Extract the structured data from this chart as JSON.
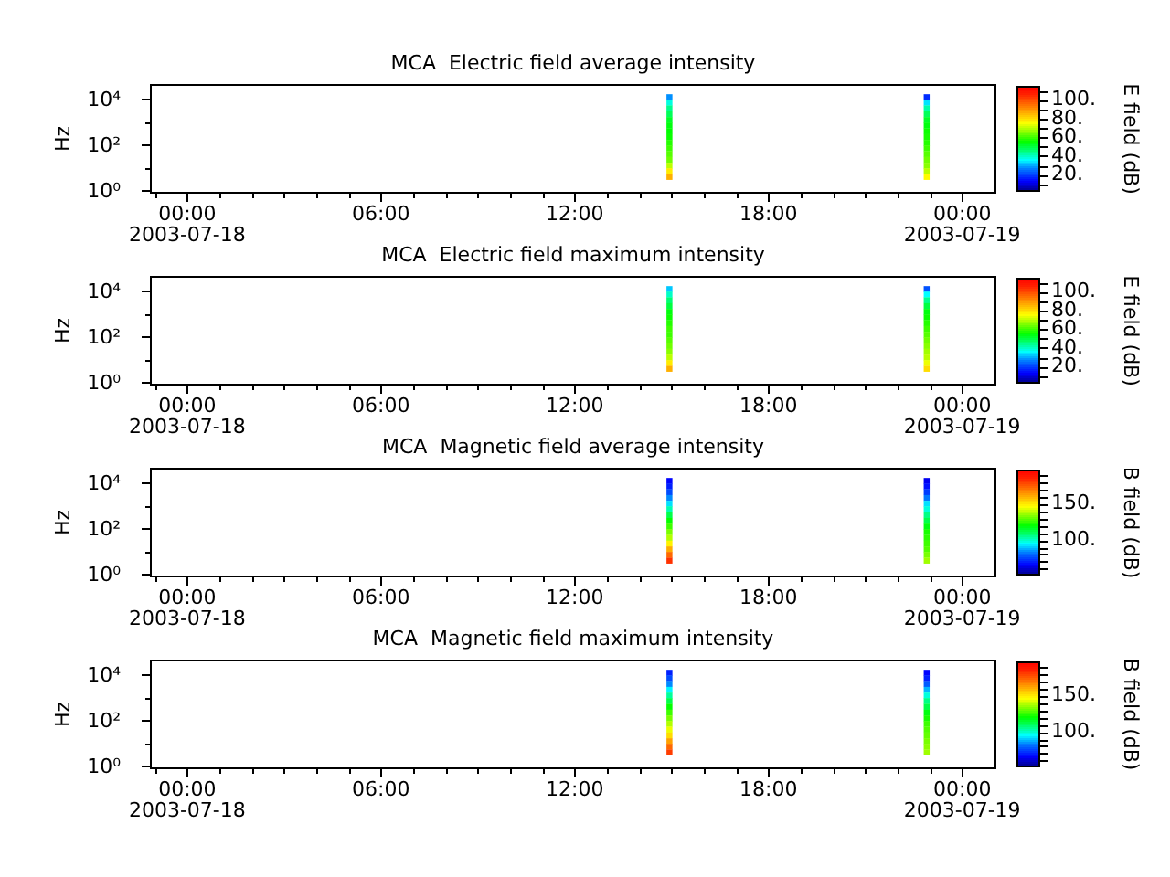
{
  "chart_data": [
    {
      "type": "scatter",
      "title": "MCA  Electric field average intensity",
      "ylabel": "Hz",
      "clabel": "E field (dB)",
      "log": "y",
      "marker": "square",
      "x": [
        "2003-07-18T14:56",
        "2003-07-18T14:56",
        "2003-07-18T14:56",
        "2003-07-18T14:56",
        "2003-07-18T14:56",
        "2003-07-18T14:56",
        "2003-07-18T14:56",
        "2003-07-18T14:56",
        "2003-07-18T14:56",
        "2003-07-18T14:56",
        "2003-07-18T14:56",
        "2003-07-18T14:56",
        "2003-07-18T14:56",
        "2003-07-18T14:56",
        "2003-07-18T14:56",
        "2003-07-18T22:54",
        "2003-07-18T22:54",
        "2003-07-18T22:54",
        "2003-07-18T22:54",
        "2003-07-18T22:54",
        "2003-07-18T22:54",
        "2003-07-18T22:54",
        "2003-07-18T22:54",
        "2003-07-18T22:54",
        "2003-07-18T22:54",
        "2003-07-18T22:54",
        "2003-07-18T22:54",
        "2003-07-18T22:54",
        "2003-07-18T22:54",
        "2003-07-18T22:54"
      ],
      "values": [
        14000,
        8000,
        4500,
        2500,
        1400,
        800,
        450,
        250,
        140,
        80,
        45,
        25,
        14,
        8,
        4.5,
        14000,
        8000,
        4500,
        2500,
        1400,
        800,
        450,
        250,
        140,
        80,
        45,
        25,
        14,
        8,
        4.5
      ],
      "cvalues": [
        28,
        38,
        44,
        48,
        52,
        54,
        55,
        56,
        58,
        60,
        62,
        64,
        70,
        78,
        86,
        18,
        34,
        42,
        48,
        52,
        54,
        56,
        57,
        58,
        60,
        62,
        64,
        66,
        70,
        76
      ],
      "xlim": [
        "2003-07-17T22:54",
        "2003-07-19T01:00"
      ],
      "ylim": [
        1,
        44000
      ],
      "xticks": [
        {
          "value": "2003-07-17T23:00",
          "label": null
        },
        {
          "value": "2003-07-18T00:00",
          "label": "00:00\n2003-07-18"
        },
        {
          "value": "2003-07-18T01:00",
          "label": null
        },
        {
          "value": "2003-07-18T02:00",
          "label": null
        },
        {
          "value": "2003-07-18T03:00",
          "label": null
        },
        {
          "value": "2003-07-18T04:00",
          "label": null
        },
        {
          "value": "2003-07-18T05:00",
          "label": null
        },
        {
          "value": "2003-07-18T06:00",
          "label": "06:00"
        },
        {
          "value": "2003-07-18T07:00",
          "label": null
        },
        {
          "value": "2003-07-18T08:00",
          "label": null
        },
        {
          "value": "2003-07-18T09:00",
          "label": null
        },
        {
          "value": "2003-07-18T10:00",
          "label": null
        },
        {
          "value": "2003-07-18T11:00",
          "label": null
        },
        {
          "value": "2003-07-18T12:00",
          "label": "12:00"
        },
        {
          "value": "2003-07-18T13:00",
          "label": null
        },
        {
          "value": "2003-07-18T14:00",
          "label": null
        },
        {
          "value": "2003-07-18T15:00",
          "label": null
        },
        {
          "value": "2003-07-18T16:00",
          "label": null
        },
        {
          "value": "2003-07-18T17:00",
          "label": null
        },
        {
          "value": "2003-07-18T18:00",
          "label": "18:00"
        },
        {
          "value": "2003-07-18T19:00",
          "label": null
        },
        {
          "value": "2003-07-18T20:00",
          "label": null
        },
        {
          "value": "2003-07-18T21:00",
          "label": null
        },
        {
          "value": "2003-07-18T22:00",
          "label": null
        },
        {
          "value": "2003-07-18T23:00",
          "label": null
        },
        {
          "value": "2003-07-19T00:00",
          "label": "00:00\n2003-07-19"
        }
      ],
      "yticks": [
        {
          "value": 1,
          "label": "10⁰"
        },
        {
          "value": 10,
          "label": null
        },
        {
          "value": 100,
          "label": "10²"
        },
        {
          "value": 1000,
          "label": null
        },
        {
          "value": 10000,
          "label": "10⁴"
        }
      ],
      "clim": [
        2,
        115
      ],
      "cticks": [
        {
          "value": 10,
          "label": null
        },
        {
          "value": 20,
          "label": "20."
        },
        {
          "value": 30,
          "label": null
        },
        {
          "value": 40,
          "label": "40."
        },
        {
          "value": 50,
          "label": null
        },
        {
          "value": 60,
          "label": "60."
        },
        {
          "value": 70,
          "label": null
        },
        {
          "value": 80,
          "label": "80."
        },
        {
          "value": 90,
          "label": null
        },
        {
          "value": 100,
          "label": "100."
        },
        {
          "value": 110,
          "label": null
        }
      ]
    },
    {
      "type": "scatter",
      "title": "MCA  Electric field maximum intensity",
      "ylabel": "Hz",
      "clabel": "E field (dB)",
      "log": "y",
      "marker": "square",
      "x": [
        "2003-07-18T14:56",
        "2003-07-18T14:56",
        "2003-07-18T14:56",
        "2003-07-18T14:56",
        "2003-07-18T14:56",
        "2003-07-18T14:56",
        "2003-07-18T14:56",
        "2003-07-18T14:56",
        "2003-07-18T14:56",
        "2003-07-18T14:56",
        "2003-07-18T14:56",
        "2003-07-18T14:56",
        "2003-07-18T14:56",
        "2003-07-18T14:56",
        "2003-07-18T14:56",
        "2003-07-18T22:54",
        "2003-07-18T22:54",
        "2003-07-18T22:54",
        "2003-07-18T22:54",
        "2003-07-18T22:54",
        "2003-07-18T22:54",
        "2003-07-18T22:54",
        "2003-07-18T22:54",
        "2003-07-18T22:54",
        "2003-07-18T22:54",
        "2003-07-18T22:54",
        "2003-07-18T22:54",
        "2003-07-18T22:54",
        "2003-07-18T22:54",
        "2003-07-18T22:54"
      ],
      "values": [
        14000,
        8000,
        4500,
        2500,
        1400,
        800,
        450,
        250,
        140,
        80,
        45,
        25,
        14,
        8,
        4.5,
        14000,
        8000,
        4500,
        2500,
        1400,
        800,
        450,
        250,
        140,
        80,
        45,
        25,
        14,
        8,
        4.5
      ],
      "cvalues": [
        32,
        40,
        46,
        50,
        54,
        56,
        58,
        60,
        60,
        62,
        64,
        66,
        70,
        78,
        86,
        22,
        36,
        44,
        50,
        54,
        56,
        58,
        60,
        62,
        64,
        66,
        68,
        70,
        74,
        80
      ],
      "xlim": [
        "2003-07-17T22:54",
        "2003-07-19T01:00"
      ],
      "ylim": [
        1,
        44000
      ],
      "xticks": [
        {
          "value": "2003-07-17T23:00",
          "label": null
        },
        {
          "value": "2003-07-18T00:00",
          "label": "00:00\n2003-07-18"
        },
        {
          "value": "2003-07-18T01:00",
          "label": null
        },
        {
          "value": "2003-07-18T02:00",
          "label": null
        },
        {
          "value": "2003-07-18T03:00",
          "label": null
        },
        {
          "value": "2003-07-18T04:00",
          "label": null
        },
        {
          "value": "2003-07-18T05:00",
          "label": null
        },
        {
          "value": "2003-07-18T06:00",
          "label": "06:00"
        },
        {
          "value": "2003-07-18T07:00",
          "label": null
        },
        {
          "value": "2003-07-18T08:00",
          "label": null
        },
        {
          "value": "2003-07-18T09:00",
          "label": null
        },
        {
          "value": "2003-07-18T10:00",
          "label": null
        },
        {
          "value": "2003-07-18T11:00",
          "label": null
        },
        {
          "value": "2003-07-18T12:00",
          "label": "12:00"
        },
        {
          "value": "2003-07-18T13:00",
          "label": null
        },
        {
          "value": "2003-07-18T14:00",
          "label": null
        },
        {
          "value": "2003-07-18T15:00",
          "label": null
        },
        {
          "value": "2003-07-18T16:00",
          "label": null
        },
        {
          "value": "2003-07-18T17:00",
          "label": null
        },
        {
          "value": "2003-07-18T18:00",
          "label": "18:00"
        },
        {
          "value": "2003-07-18T19:00",
          "label": null
        },
        {
          "value": "2003-07-18T20:00",
          "label": null
        },
        {
          "value": "2003-07-18T21:00",
          "label": null
        },
        {
          "value": "2003-07-18T22:00",
          "label": null
        },
        {
          "value": "2003-07-18T23:00",
          "label": null
        },
        {
          "value": "2003-07-19T00:00",
          "label": "00:00\n2003-07-19"
        }
      ],
      "yticks": [
        {
          "value": 1,
          "label": "10⁰"
        },
        {
          "value": 10,
          "label": null
        },
        {
          "value": 100,
          "label": "10²"
        },
        {
          "value": 1000,
          "label": null
        },
        {
          "value": 10000,
          "label": "10⁴"
        }
      ],
      "clim": [
        2,
        115
      ],
      "cticks": [
        {
          "value": 10,
          "label": null
        },
        {
          "value": 20,
          "label": "20."
        },
        {
          "value": 30,
          "label": null
        },
        {
          "value": 40,
          "label": "40."
        },
        {
          "value": 50,
          "label": null
        },
        {
          "value": 60,
          "label": "60."
        },
        {
          "value": 70,
          "label": null
        },
        {
          "value": 80,
          "label": "80."
        },
        {
          "value": 90,
          "label": null
        },
        {
          "value": 100,
          "label": "100."
        },
        {
          "value": 110,
          "label": null
        }
      ]
    },
    {
      "type": "scatter",
      "title": "MCA  Magnetic field average intensity",
      "ylabel": "Hz",
      "clabel": "B field (dB)",
      "log": "y",
      "marker": "square",
      "x": [
        "2003-07-18T14:56",
        "2003-07-18T14:56",
        "2003-07-18T14:56",
        "2003-07-18T14:56",
        "2003-07-18T14:56",
        "2003-07-18T14:56",
        "2003-07-18T14:56",
        "2003-07-18T14:56",
        "2003-07-18T14:56",
        "2003-07-18T14:56",
        "2003-07-18T14:56",
        "2003-07-18T14:56",
        "2003-07-18T14:56",
        "2003-07-18T14:56",
        "2003-07-18T14:56",
        "2003-07-18T22:54",
        "2003-07-18T22:54",
        "2003-07-18T22:54",
        "2003-07-18T22:54",
        "2003-07-18T22:54",
        "2003-07-18T22:54",
        "2003-07-18T22:54",
        "2003-07-18T22:54",
        "2003-07-18T22:54",
        "2003-07-18T22:54",
        "2003-07-18T22:54",
        "2003-07-18T22:54",
        "2003-07-18T22:54",
        "2003-07-18T22:54",
        "2003-07-18T22:54"
      ],
      "values": [
        14000,
        8000,
        4500,
        2500,
        1400,
        800,
        450,
        250,
        140,
        80,
        45,
        25,
        14,
        8,
        4.5,
        14000,
        8000,
        4500,
        2500,
        1400,
        800,
        450,
        250,
        140,
        80,
        45,
        25,
        14,
        8,
        4.5
      ],
      "cvalues": [
        66,
        70,
        76,
        84,
        92,
        102,
        112,
        120,
        126,
        132,
        138,
        148,
        160,
        172,
        182,
        64,
        68,
        74,
        82,
        92,
        98,
        106,
        112,
        118,
        122,
        124,
        126,
        128,
        132,
        136
      ],
      "xlim": [
        "2003-07-17T22:54",
        "2003-07-19T01:00"
      ],
      "ylim": [
        1,
        44000
      ],
      "xticks": [
        {
          "value": "2003-07-17T23:00",
          "label": null
        },
        {
          "value": "2003-07-18T00:00",
          "label": "00:00\n2003-07-18"
        },
        {
          "value": "2003-07-18T01:00",
          "label": null
        },
        {
          "value": "2003-07-18T02:00",
          "label": null
        },
        {
          "value": "2003-07-18T03:00",
          "label": null
        },
        {
          "value": "2003-07-18T04:00",
          "label": null
        },
        {
          "value": "2003-07-18T05:00",
          "label": null
        },
        {
          "value": "2003-07-18T06:00",
          "label": "06:00"
        },
        {
          "value": "2003-07-18T07:00",
          "label": null
        },
        {
          "value": "2003-07-18T08:00",
          "label": null
        },
        {
          "value": "2003-07-18T09:00",
          "label": null
        },
        {
          "value": "2003-07-18T10:00",
          "label": null
        },
        {
          "value": "2003-07-18T11:00",
          "label": null
        },
        {
          "value": "2003-07-18T12:00",
          "label": "12:00"
        },
        {
          "value": "2003-07-18T13:00",
          "label": null
        },
        {
          "value": "2003-07-18T14:00",
          "label": null
        },
        {
          "value": "2003-07-18T15:00",
          "label": null
        },
        {
          "value": "2003-07-18T16:00",
          "label": null
        },
        {
          "value": "2003-07-18T17:00",
          "label": null
        },
        {
          "value": "2003-07-18T18:00",
          "label": "18:00"
        },
        {
          "value": "2003-07-18T19:00",
          "label": null
        },
        {
          "value": "2003-07-18T20:00",
          "label": null
        },
        {
          "value": "2003-07-18T21:00",
          "label": null
        },
        {
          "value": "2003-07-18T22:00",
          "label": null
        },
        {
          "value": "2003-07-18T23:00",
          "label": null
        },
        {
          "value": "2003-07-19T00:00",
          "label": "00:00\n2003-07-19"
        }
      ],
      "yticks": [
        {
          "value": 1,
          "label": "10⁰"
        },
        {
          "value": 10,
          "label": null
        },
        {
          "value": 100,
          "label": "10²"
        },
        {
          "value": 1000,
          "label": null
        },
        {
          "value": 10000,
          "label": "10⁴"
        }
      ],
      "clim": [
        51,
        197
      ],
      "cticks": [
        {
          "value": 60,
          "label": null
        },
        {
          "value": 70,
          "label": null
        },
        {
          "value": 80,
          "label": null
        },
        {
          "value": 90,
          "label": null
        },
        {
          "value": 100,
          "label": "100."
        },
        {
          "value": 110,
          "label": null
        },
        {
          "value": 120,
          "label": null
        },
        {
          "value": 130,
          "label": null
        },
        {
          "value": 140,
          "label": null
        },
        {
          "value": 150,
          "label": "150."
        },
        {
          "value": 160,
          "label": null
        },
        {
          "value": 170,
          "label": null
        },
        {
          "value": 180,
          "label": null
        },
        {
          "value": 190,
          "label": null
        }
      ]
    },
    {
      "type": "scatter",
      "title": "MCA  Magnetic field maximum intensity",
      "ylabel": "Hz",
      "clabel": "B field (dB)",
      "log": "y",
      "marker": "square",
      "x": [
        "2003-07-18T14:56",
        "2003-07-18T14:56",
        "2003-07-18T14:56",
        "2003-07-18T14:56",
        "2003-07-18T14:56",
        "2003-07-18T14:56",
        "2003-07-18T14:56",
        "2003-07-18T14:56",
        "2003-07-18T14:56",
        "2003-07-18T14:56",
        "2003-07-18T14:56",
        "2003-07-18T14:56",
        "2003-07-18T14:56",
        "2003-07-18T14:56",
        "2003-07-18T14:56",
        "2003-07-18T22:54",
        "2003-07-18T22:54",
        "2003-07-18T22:54",
        "2003-07-18T22:54",
        "2003-07-18T22:54",
        "2003-07-18T22:54",
        "2003-07-18T22:54",
        "2003-07-18T22:54",
        "2003-07-18T22:54",
        "2003-07-18T22:54",
        "2003-07-18T22:54",
        "2003-07-18T22:54",
        "2003-07-18T22:54",
        "2003-07-18T22:54",
        "2003-07-18T22:54"
      ],
      "values": [
        14000,
        8000,
        4500,
        2500,
        1400,
        800,
        450,
        250,
        140,
        80,
        45,
        25,
        14,
        8,
        4.5,
        14000,
        8000,
        4500,
        2500,
        1400,
        800,
        450,
        250,
        140,
        80,
        45,
        25,
        14,
        8,
        4.5
      ],
      "cvalues": [
        70,
        76,
        84,
        94,
        104,
        112,
        120,
        126,
        132,
        138,
        144,
        152,
        162,
        172,
        180,
        66,
        70,
        78,
        88,
        98,
        106,
        112,
        118,
        122,
        126,
        128,
        130,
        132,
        134,
        136
      ],
      "xlim": [
        "2003-07-17T22:54",
        "2003-07-19T01:00"
      ],
      "ylim": [
        1,
        44000
      ],
      "xticks": [
        {
          "value": "2003-07-17T23:00",
          "label": null
        },
        {
          "value": "2003-07-18T00:00",
          "label": "00:00\n2003-07-18"
        },
        {
          "value": "2003-07-18T01:00",
          "label": null
        },
        {
          "value": "2003-07-18T02:00",
          "label": null
        },
        {
          "value": "2003-07-18T03:00",
          "label": null
        },
        {
          "value": "2003-07-18T04:00",
          "label": null
        },
        {
          "value": "2003-07-18T05:00",
          "label": null
        },
        {
          "value": "2003-07-18T06:00",
          "label": "06:00"
        },
        {
          "value": "2003-07-18T07:00",
          "label": null
        },
        {
          "value": "2003-07-18T08:00",
          "label": null
        },
        {
          "value": "2003-07-18T09:00",
          "label": null
        },
        {
          "value": "2003-07-18T10:00",
          "label": null
        },
        {
          "value": "2003-07-18T11:00",
          "label": null
        },
        {
          "value": "2003-07-18T12:00",
          "label": "12:00"
        },
        {
          "value": "2003-07-18T13:00",
          "label": null
        },
        {
          "value": "2003-07-18T14:00",
          "label": null
        },
        {
          "value": "2003-07-18T15:00",
          "label": null
        },
        {
          "value": "2003-07-18T16:00",
          "label": null
        },
        {
          "value": "2003-07-18T17:00",
          "label": null
        },
        {
          "value": "2003-07-18T18:00",
          "label": "18:00"
        },
        {
          "value": "2003-07-18T19:00",
          "label": null
        },
        {
          "value": "2003-07-18T20:00",
          "label": null
        },
        {
          "value": "2003-07-18T21:00",
          "label": null
        },
        {
          "value": "2003-07-18T22:00",
          "label": null
        },
        {
          "value": "2003-07-18T23:00",
          "label": null
        },
        {
          "value": "2003-07-19T00:00",
          "label": "00:00\n2003-07-19"
        }
      ],
      "yticks": [
        {
          "value": 1,
          "label": "10⁰"
        },
        {
          "value": 10,
          "label": null
        },
        {
          "value": 100,
          "label": "10²"
        },
        {
          "value": 1000,
          "label": null
        },
        {
          "value": 10000,
          "label": "10⁴"
        }
      ],
      "clim": [
        51,
        197
      ],
      "cticks": [
        {
          "value": 60,
          "label": null
        },
        {
          "value": 70,
          "label": null
        },
        {
          "value": 80,
          "label": null
        },
        {
          "value": 90,
          "label": null
        },
        {
          "value": 100,
          "label": "100."
        },
        {
          "value": 110,
          "label": null
        },
        {
          "value": 120,
          "label": null
        },
        {
          "value": 130,
          "label": null
        },
        {
          "value": 140,
          "label": null
        },
        {
          "value": 150,
          "label": "150."
        },
        {
          "value": 160,
          "label": null
        },
        {
          "value": 170,
          "label": null
        },
        {
          "value": 180,
          "label": null
        },
        {
          "value": 190,
          "label": null
        }
      ]
    }
  ]
}
